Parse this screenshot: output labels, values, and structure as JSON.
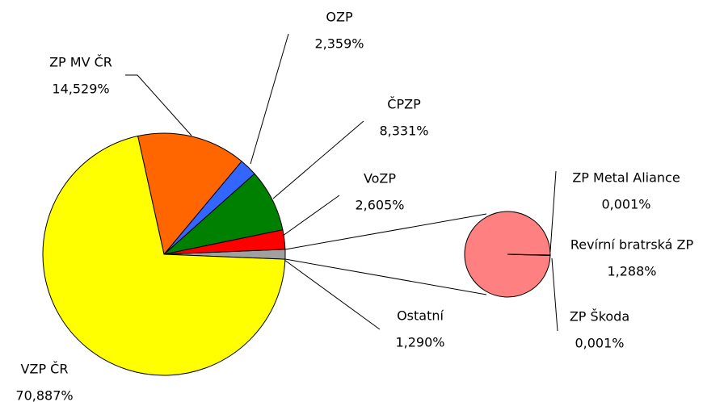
{
  "chart_data": {
    "type": "pie-of-pie",
    "categories": [
      "Ostatní",
      "VoZP",
      "ČPZP",
      "OZP",
      "ZP MV ČR",
      "VZP ČR"
    ],
    "values": [
      1.29,
      2.605,
      8.331,
      2.359,
      14.529,
      70.887
    ],
    "value_labels": [
      "1,290%",
      "2,605%",
      "8,331%",
      "2,359%",
      "14,529%",
      "70,887%"
    ],
    "colors": [
      "#a0a0a0",
      "#ff0000",
      "#008000",
      "#3366ff",
      "#ff6600",
      "#ffff00"
    ],
    "secondary": {
      "categories": [
        "ZP Metal Aliance",
        "Revírní bratrská ZP",
        "ZP Škoda"
      ],
      "values": [
        0.001,
        1.288,
        0.001
      ],
      "value_labels": [
        "0,001%",
        "1,288%",
        "0,001%"
      ],
      "color": "#ff8080"
    }
  }
}
